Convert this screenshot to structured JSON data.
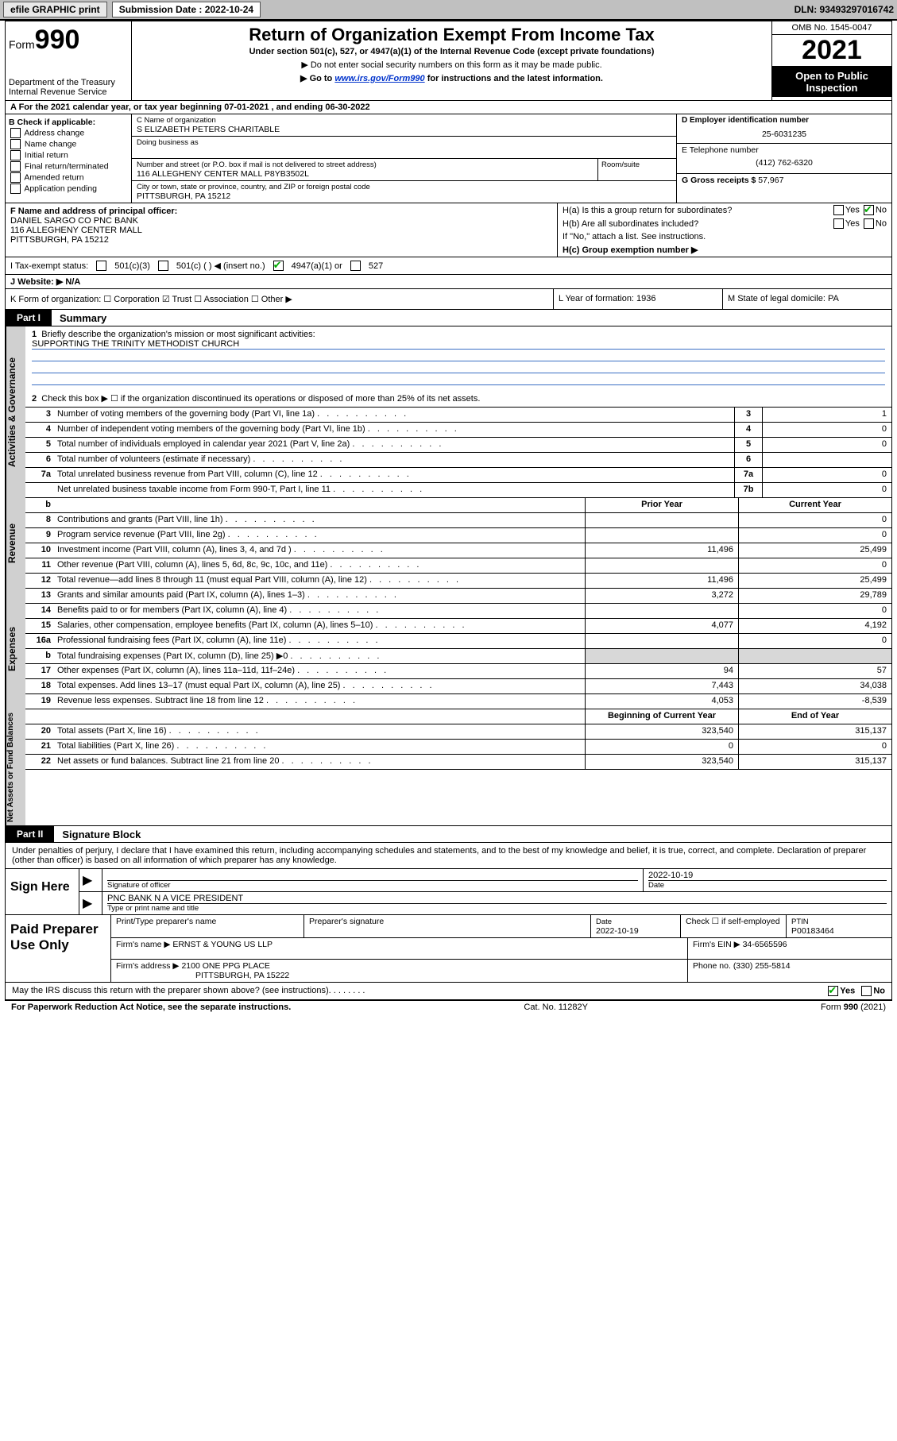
{
  "topbar": {
    "efile": "efile GRAPHIC print",
    "sub_label": "Submission Date : 2022-10-24",
    "dln": "DLN: 93493297016742"
  },
  "header": {
    "form_prefix": "Form",
    "form_number": "990",
    "dept": "Department of the Treasury",
    "irs": "Internal Revenue Service",
    "title": "Return of Organization Exempt From Income Tax",
    "subtitle": "Under section 501(c), 527, or 4947(a)(1) of the Internal Revenue Code (except private foundations)",
    "note1": "▶ Do not enter social security numbers on this form as it may be made public.",
    "note2_pre": "▶ Go to ",
    "note2_link": "www.irs.gov/Form990",
    "note2_post": " for instructions and the latest information.",
    "omb": "OMB No. 1545-0047",
    "year": "2021",
    "open": "Open to Public Inspection"
  },
  "row_a": "A For the 2021 calendar year, or tax year beginning 07-01-2021   , and ending 06-30-2022",
  "col_b": {
    "lbl": "B Check if applicable:",
    "opts": [
      "Address change",
      "Name change",
      "Initial return",
      "Final return/terminated",
      "Amended return",
      "Application pending"
    ]
  },
  "col_c": {
    "name_lbl": "C Name of organization",
    "name": "S ELIZABETH PETERS CHARITABLE",
    "dba_lbl": "Doing business as",
    "street_lbl": "Number and street (or P.O. box if mail is not delivered to street address)",
    "street": "116 ALLEGHENY CENTER MALL P8YB3502L",
    "room_lbl": "Room/suite",
    "city_lbl": "City or town, state or province, country, and ZIP or foreign postal code",
    "city": "PITTSBURGH, PA  15212"
  },
  "col_de": {
    "d_lbl": "D Employer identification number",
    "d_val": "25-6031235",
    "e_lbl": "E Telephone number",
    "e_val": "(412) 762-6320",
    "g_lbl": "G Gross receipts $ ",
    "g_val": "57,967"
  },
  "col_f": {
    "lbl": "F Name and address of principal officer:",
    "l1": "DANIEL SARGO CO PNC BANK",
    "l2": "116 ALLEGHENY CENTER MALL",
    "l3": "PITTSBURGH, PA  15212"
  },
  "col_h": {
    "ha": "H(a)  Is this a group return for subordinates?",
    "hb": "H(b)  Are all subordinates included?",
    "hnote": "If \"No,\" attach a list. See instructions.",
    "hc": "H(c)  Group exemption number ▶",
    "yes": "Yes",
    "no": "No"
  },
  "row_i": {
    "lbl": "I   Tax-exempt status:",
    "o1": "501(c)(3)",
    "o2": "501(c) (    ) ◀ (insert no.)",
    "o3": "4947(a)(1) or",
    "o4": "527"
  },
  "row_j": "J   Website: ▶  N/A",
  "row_k": "K Form of organization:    ☐ Corporation   ☑ Trust   ☐ Association   ☐ Other ▶",
  "row_l": "L Year of formation: 1936",
  "row_m": "M State of legal domicile: PA",
  "part1": {
    "tag": "Part I",
    "title": "Summary"
  },
  "gov": {
    "vtab": "Activities & Governance",
    "l1": "Briefly describe the organization's mission or most significant activities:",
    "mission": "SUPPORTING THE TRINITY METHODIST CHURCH",
    "l2": "Check this box ▶ ☐  if the organization discontinued its operations or disposed of more than 25% of its net assets.",
    "rows": [
      {
        "n": "3",
        "d": "Number of voting members of the governing body (Part VI, line 1a)",
        "box": "3",
        "v": "1"
      },
      {
        "n": "4",
        "d": "Number of independent voting members of the governing body (Part VI, line 1b)",
        "box": "4",
        "v": "0"
      },
      {
        "n": "5",
        "d": "Total number of individuals employed in calendar year 2021 (Part V, line 2a)",
        "box": "5",
        "v": "0"
      },
      {
        "n": "6",
        "d": "Total number of volunteers (estimate if necessary)",
        "box": "6",
        "v": ""
      },
      {
        "n": "7a",
        "d": "Total unrelated business revenue from Part VIII, column (C), line 12",
        "box": "7a",
        "v": "0"
      },
      {
        "n": "",
        "d": "Net unrelated business taxable income from Form 990-T, Part I, line 11",
        "box": "7b",
        "v": "0"
      }
    ]
  },
  "rev": {
    "vtab": "Revenue",
    "hdr_b": "b",
    "hdr_p": "Prior Year",
    "hdr_c": "Current Year",
    "rows": [
      {
        "n": "8",
        "d": "Contributions and grants (Part VIII, line 1h)",
        "p": "",
        "c": "0"
      },
      {
        "n": "9",
        "d": "Program service revenue (Part VIII, line 2g)",
        "p": "",
        "c": "0"
      },
      {
        "n": "10",
        "d": "Investment income (Part VIII, column (A), lines 3, 4, and 7d )",
        "p": "11,496",
        "c": "25,499"
      },
      {
        "n": "11",
        "d": "Other revenue (Part VIII, column (A), lines 5, 6d, 8c, 9c, 10c, and 11e)",
        "p": "",
        "c": "0"
      },
      {
        "n": "12",
        "d": "Total revenue—add lines 8 through 11 (must equal Part VIII, column (A), line 12)",
        "p": "11,496",
        "c": "25,499"
      }
    ]
  },
  "exp": {
    "vtab": "Expenses",
    "rows": [
      {
        "n": "13",
        "d": "Grants and similar amounts paid (Part IX, column (A), lines 1–3)",
        "p": "3,272",
        "c": "29,789"
      },
      {
        "n": "14",
        "d": "Benefits paid to or for members (Part IX, column (A), line 4)",
        "p": "",
        "c": "0"
      },
      {
        "n": "15",
        "d": "Salaries, other compensation, employee benefits (Part IX, column (A), lines 5–10)",
        "p": "4,077",
        "c": "4,192"
      },
      {
        "n": "16a",
        "d": "Professional fundraising fees (Part IX, column (A), line 11e)",
        "p": "",
        "c": "0"
      },
      {
        "n": "b",
        "d": "Total fundraising expenses (Part IX, column (D), line 25) ▶0",
        "p": "__shade__",
        "c": "__shade__"
      },
      {
        "n": "17",
        "d": "Other expenses (Part IX, column (A), lines 11a–11d, 11f–24e)",
        "p": "94",
        "c": "57"
      },
      {
        "n": "18",
        "d": "Total expenses. Add lines 13–17 (must equal Part IX, column (A), line 25)",
        "p": "7,443",
        "c": "34,038"
      },
      {
        "n": "19",
        "d": "Revenue less expenses. Subtract line 18 from line 12",
        "p": "4,053",
        "c": "-8,539"
      }
    ]
  },
  "net": {
    "vtab": "Net Assets or Fund Balances",
    "hdr_p": "Beginning of Current Year",
    "hdr_c": "End of Year",
    "rows": [
      {
        "n": "20",
        "d": "Total assets (Part X, line 16)",
        "p": "323,540",
        "c": "315,137"
      },
      {
        "n": "21",
        "d": "Total liabilities (Part X, line 26)",
        "p": "0",
        "c": "0"
      },
      {
        "n": "22",
        "d": "Net assets or fund balances. Subtract line 21 from line 20",
        "p": "323,540",
        "c": "315,137"
      }
    ]
  },
  "part2": {
    "tag": "Part II",
    "title": "Signature Block"
  },
  "sig": {
    "decl": "Under penalties of perjury, I declare that I have examined this return, including accompanying schedules and statements, and to the best of my knowledge and belief, it is true, correct, and complete. Declaration of preparer (other than officer) is based on all information of which preparer has any knowledge.",
    "sign_here": "Sign Here",
    "sig_officer": "Signature of officer",
    "date": "2022-10-19",
    "date_lbl": "Date",
    "name": "PNC BANK N A  VICE PRESIDENT",
    "name_lbl": "Type or print name and title"
  },
  "paid": {
    "lbl": "Paid Preparer Use Only",
    "h1": "Print/Type preparer's name",
    "h2": "Preparer's signature",
    "h3_date_lbl": "Date",
    "h3_date": "2022-10-19",
    "h4": "Check ☐ if self-employed",
    "h5_lbl": "PTIN",
    "h5": "P00183464",
    "firm_lbl": "Firm's name      ▶",
    "firm": "ERNST & YOUNG US LLP",
    "ein_lbl": "Firm's EIN ▶",
    "ein": "34-6565596",
    "addr_lbl": "Firm's address ▶",
    "addr1": "2100 ONE PPG PLACE",
    "addr2": "PITTSBURGH, PA  15222",
    "phone_lbl": "Phone no.",
    "phone": "(330) 255-5814"
  },
  "footer": {
    "discuss": "May the IRS discuss this return with the preparer shown above? (see instructions)",
    "yes": "Yes",
    "no": "No",
    "pra": "For Paperwork Reduction Act Notice, see the separate instructions.",
    "cat": "Cat. No. 11282Y",
    "form": "Form 990 (2021)"
  }
}
